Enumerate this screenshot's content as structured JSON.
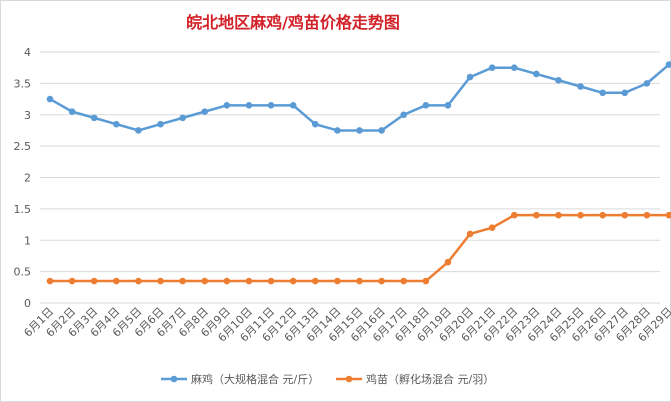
{
  "chart_data": {
    "type": "line",
    "title": "皖北地区麻鸡/鸡苗价格走势图",
    "xlabel": "",
    "ylabel": "",
    "categories": [
      "6月1日",
      "6月2日",
      "6月3日",
      "6月4日",
      "6月5日",
      "6月6日",
      "6月7日",
      "6月8日",
      "6月9日",
      "6月10日",
      "6月11日",
      "6月12日",
      "6月13日",
      "6月14日",
      "6月15日",
      "6月16日",
      "6月17日",
      "6月18日",
      "6月19日",
      "6月20日",
      "6月21日",
      "6月22日",
      "6月23日",
      "6月24日",
      "6月25日",
      "6月26日",
      "6月27日",
      "6月28日",
      "6月29日"
    ],
    "ylim": [
      0,
      4
    ],
    "yticks": [
      "0",
      "0.5",
      "1",
      "1.5",
      "2",
      "2.5",
      "3",
      "3.5",
      "4"
    ],
    "grid": true,
    "legend_position": "bottom",
    "series": [
      {
        "name": "麻鸡（大规格混合 元/斤）",
        "color": "#5b9bd5",
        "values": [
          3.25,
          3.05,
          2.95,
          2.85,
          2.75,
          2.85,
          2.95,
          3.05,
          3.15,
          3.15,
          3.15,
          3.15,
          2.85,
          2.75,
          2.75,
          2.75,
          3.0,
          3.15,
          3.15,
          3.6,
          3.75,
          3.75,
          3.65,
          3.55,
          3.45,
          3.35,
          3.35,
          3.5,
          3.8
        ]
      },
      {
        "name": "鸡苗（孵化场混合 元/羽）",
        "color": "#ed7d31",
        "values": [
          0.35,
          0.35,
          0.35,
          0.35,
          0.35,
          0.35,
          0.35,
          0.35,
          0.35,
          0.35,
          0.35,
          0.35,
          0.35,
          0.35,
          0.35,
          0.35,
          0.35,
          0.35,
          0.65,
          1.1,
          1.2,
          1.4,
          1.4,
          1.4,
          1.4,
          1.4,
          1.4,
          1.4,
          1.4
        ]
      }
    ]
  }
}
